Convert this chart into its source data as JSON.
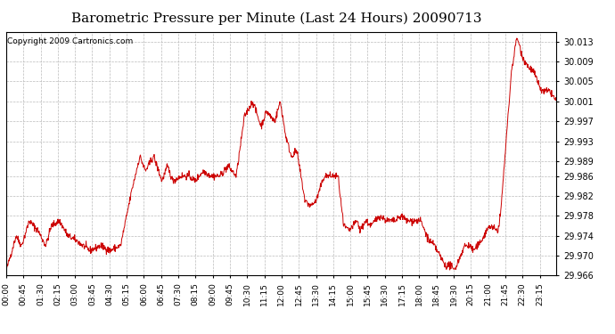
{
  "title": "Barometric Pressure per Minute (Last 24 Hours) 20090713",
  "copyright": "Copyright 2009 Cartronics.com",
  "line_color": "#cc0000",
  "bg_color": "#ffffff",
  "plot_bg_color": "#ffffff",
  "grid_color": "#bbbbbb",
  "ylim": [
    29.966,
    30.015
  ],
  "yticks": [
    29.966,
    29.97,
    29.974,
    29.978,
    29.982,
    29.986,
    29.989,
    29.993,
    29.997,
    30.001,
    30.005,
    30.009,
    30.013
  ],
  "xtick_labels": [
    "00:00",
    "00:45",
    "01:30",
    "02:15",
    "03:00",
    "03:45",
    "04:30",
    "05:15",
    "06:00",
    "06:45",
    "07:30",
    "08:15",
    "09:00",
    "09:45",
    "10:30",
    "11:15",
    "12:00",
    "12:45",
    "13:30",
    "14:15",
    "15:00",
    "15:45",
    "16:30",
    "17:15",
    "18:00",
    "18:45",
    "19:30",
    "20:15",
    "21:00",
    "21:45",
    "22:30",
    "23:15"
  ],
  "title_fontsize": 11,
  "copyright_fontsize": 6.5,
  "ylabel_fontsize": 7,
  "xlabel_fontsize": 6.5,
  "control_points": [
    [
      0.0,
      29.967
    ],
    [
      0.008,
      29.97
    ],
    [
      0.018,
      29.974
    ],
    [
      0.028,
      29.972
    ],
    [
      0.042,
      29.977
    ],
    [
      0.058,
      29.975
    ],
    [
      0.072,
      29.972
    ],
    [
      0.082,
      29.976
    ],
    [
      0.097,
      29.977
    ],
    [
      0.112,
      29.974
    ],
    [
      0.128,
      29.973
    ],
    [
      0.152,
      29.971
    ],
    [
      0.172,
      29.972
    ],
    [
      0.188,
      29.971
    ],
    [
      0.208,
      29.972
    ],
    [
      0.228,
      29.983
    ],
    [
      0.243,
      29.99
    ],
    [
      0.253,
      29.987
    ],
    [
      0.268,
      29.99
    ],
    [
      0.283,
      29.985
    ],
    [
      0.293,
      29.988
    ],
    [
      0.303,
      29.985
    ],
    [
      0.318,
      29.986
    ],
    [
      0.333,
      29.986
    ],
    [
      0.343,
      29.985
    ],
    [
      0.358,
      29.987
    ],
    [
      0.373,
      29.986
    ],
    [
      0.388,
      29.986
    ],
    [
      0.403,
      29.988
    ],
    [
      0.418,
      29.986
    ],
    [
      0.433,
      29.998
    ],
    [
      0.448,
      30.001
    ],
    [
      0.463,
      29.996
    ],
    [
      0.473,
      29.999
    ],
    [
      0.488,
      29.997
    ],
    [
      0.498,
      30.001
    ],
    [
      0.508,
      29.994
    ],
    [
      0.518,
      29.99
    ],
    [
      0.528,
      29.991
    ],
    [
      0.543,
      29.981
    ],
    [
      0.553,
      29.98
    ],
    [
      0.563,
      29.981
    ],
    [
      0.578,
      29.986
    ],
    [
      0.593,
      29.986
    ],
    [
      0.603,
      29.986
    ],
    [
      0.613,
      29.976
    ],
    [
      0.623,
      29.975
    ],
    [
      0.638,
      29.977
    ],
    [
      0.643,
      29.975
    ],
    [
      0.653,
      29.977
    ],
    [
      0.663,
      29.976
    ],
    [
      0.678,
      29.978
    ],
    [
      0.693,
      29.977
    ],
    [
      0.708,
      29.977
    ],
    [
      0.718,
      29.978
    ],
    [
      0.728,
      29.977
    ],
    [
      0.743,
      29.977
    ],
    [
      0.753,
      29.977
    ],
    [
      0.768,
      29.973
    ],
    [
      0.778,
      29.972
    ],
    [
      0.783,
      29.971
    ],
    [
      0.798,
      29.968
    ],
    [
      0.808,
      29.968
    ],
    [
      0.813,
      29.967
    ],
    [
      0.818,
      29.968
    ],
    [
      0.833,
      29.972
    ],
    [
      0.843,
      29.972
    ],
    [
      0.848,
      29.971
    ],
    [
      0.858,
      29.972
    ],
    [
      0.878,
      29.976
    ],
    [
      0.893,
      29.975
    ],
    [
      0.898,
      29.978
    ],
    [
      0.918,
      30.007
    ],
    [
      0.928,
      30.014
    ],
    [
      0.938,
      30.01
    ],
    [
      0.948,
      30.008
    ],
    [
      0.958,
      30.007
    ],
    [
      0.973,
      30.003
    ],
    [
      0.988,
      30.003
    ],
    [
      1.0,
      30.001
    ]
  ]
}
